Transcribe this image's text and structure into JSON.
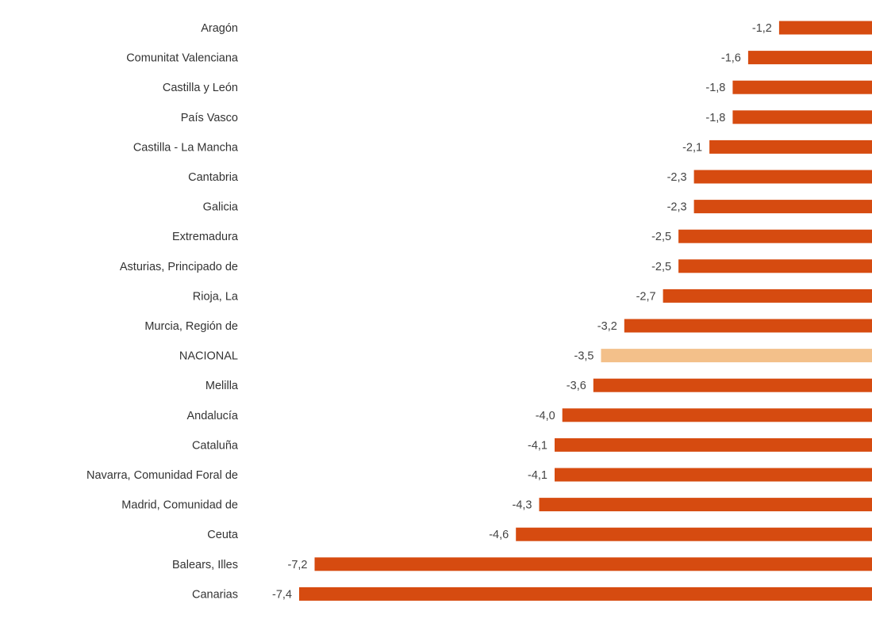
{
  "chart_data": {
    "type": "bar",
    "orientation": "horizontal",
    "categories": [
      "Aragón",
      "Comunitat Valenciana",
      "Castilla y León",
      "País Vasco",
      "Castilla - La Mancha",
      "Cantabria",
      "Galicia",
      "Extremadura",
      "Asturias, Principado de",
      "Rioja, La",
      "Murcia, Región de",
      "NACIONAL",
      "Melilla",
      "Andalucía",
      "Cataluña",
      "Navarra, Comunidad Foral de",
      "Madrid, Comunidad de",
      "Ceuta",
      "Balears, Illes",
      "Canarias"
    ],
    "values": [
      -1.2,
      -1.6,
      -1.8,
      -1.8,
      -2.1,
      -2.3,
      -2.3,
      -2.5,
      -2.5,
      -2.7,
      -3.2,
      -3.5,
      -3.6,
      -4.0,
      -4.1,
      -4.1,
      -4.3,
      -4.6,
      -7.2,
      -7.4
    ],
    "value_labels": [
      "-1,2",
      "-1,6",
      "-1,8",
      "-1,8",
      "-2,1",
      "-2,3",
      "-2,3",
      "-2,5",
      "-2,5",
      "-2,7",
      "-3,2",
      "-3,5",
      "-3,6",
      "-4,0",
      "-4,1",
      "-4,1",
      "-4,3",
      "-4,6",
      "-7,2",
      "-7,4"
    ],
    "highlight_category": "NACIONAL",
    "colors": {
      "bar": "#d64b10",
      "highlight": "#f3c08a",
      "label": "#333333",
      "value_label": "#444444"
    },
    "xlim": [
      -7.4,
      0
    ],
    "grid": false,
    "legend": "none"
  }
}
